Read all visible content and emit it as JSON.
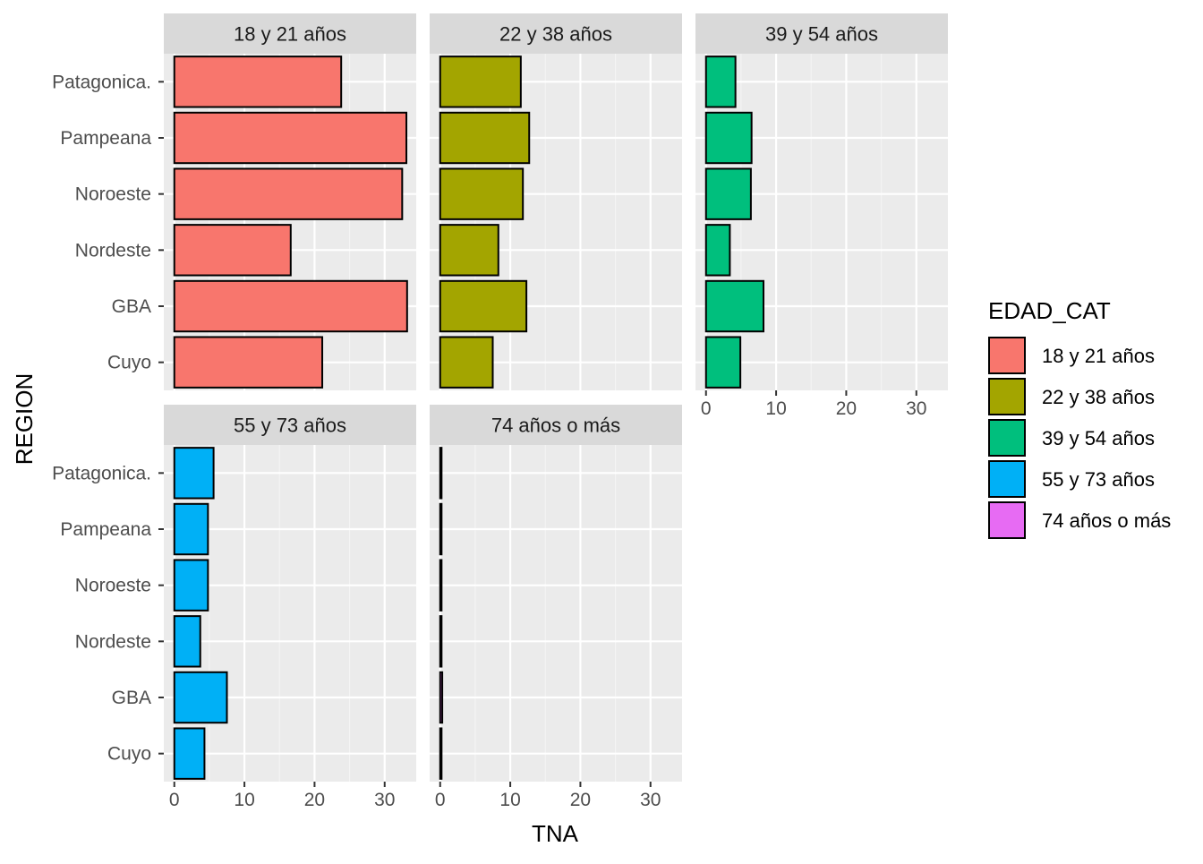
{
  "chart_data": {
    "type": "bar",
    "orientation": "horizontal",
    "xlabel": "TNA",
    "ylabel": "REGION",
    "xlim": [
      -1.5,
      34.5
    ],
    "xticks": [
      0,
      10,
      20,
      30
    ],
    "tick_labels": [
      "0",
      "10",
      "20",
      "30"
    ],
    "categories": [
      "Patagonica.",
      "Pampeana",
      "Noroeste",
      "Nordeste",
      "GBA",
      "Cuyo"
    ],
    "legend": {
      "title": "EDAD_CAT",
      "position": "right",
      "items": [
        "18 y 21 años",
        "22 y 38 años",
        "39 y 54 años",
        "55 y 73 años",
        "74 años o más"
      ]
    },
    "grid": true,
    "panels": [
      {
        "name": "18 y 21 años",
        "color": "#F8766D",
        "values": [
          23.8,
          33.1,
          32.5,
          16.6,
          33.2,
          21.1
        ]
      },
      {
        "name": "22 y 38 años",
        "color": "#A3A500",
        "values": [
          11.5,
          12.7,
          11.8,
          8.3,
          12.3,
          7.5
        ]
      },
      {
        "name": "39 y 54 años",
        "color": "#00BF7D",
        "values": [
          4.2,
          6.5,
          6.4,
          3.4,
          8.2,
          4.9
        ]
      },
      {
        "name": "55 y 73 años",
        "color": "#00B0F6",
        "values": [
          5.6,
          4.8,
          4.8,
          3.7,
          7.5,
          4.3
        ]
      },
      {
        "name": "74 años o más",
        "color": "#E76BF3",
        "values": [
          0.2,
          0.2,
          0.2,
          0.2,
          0.3,
          0.2
        ]
      }
    ]
  }
}
